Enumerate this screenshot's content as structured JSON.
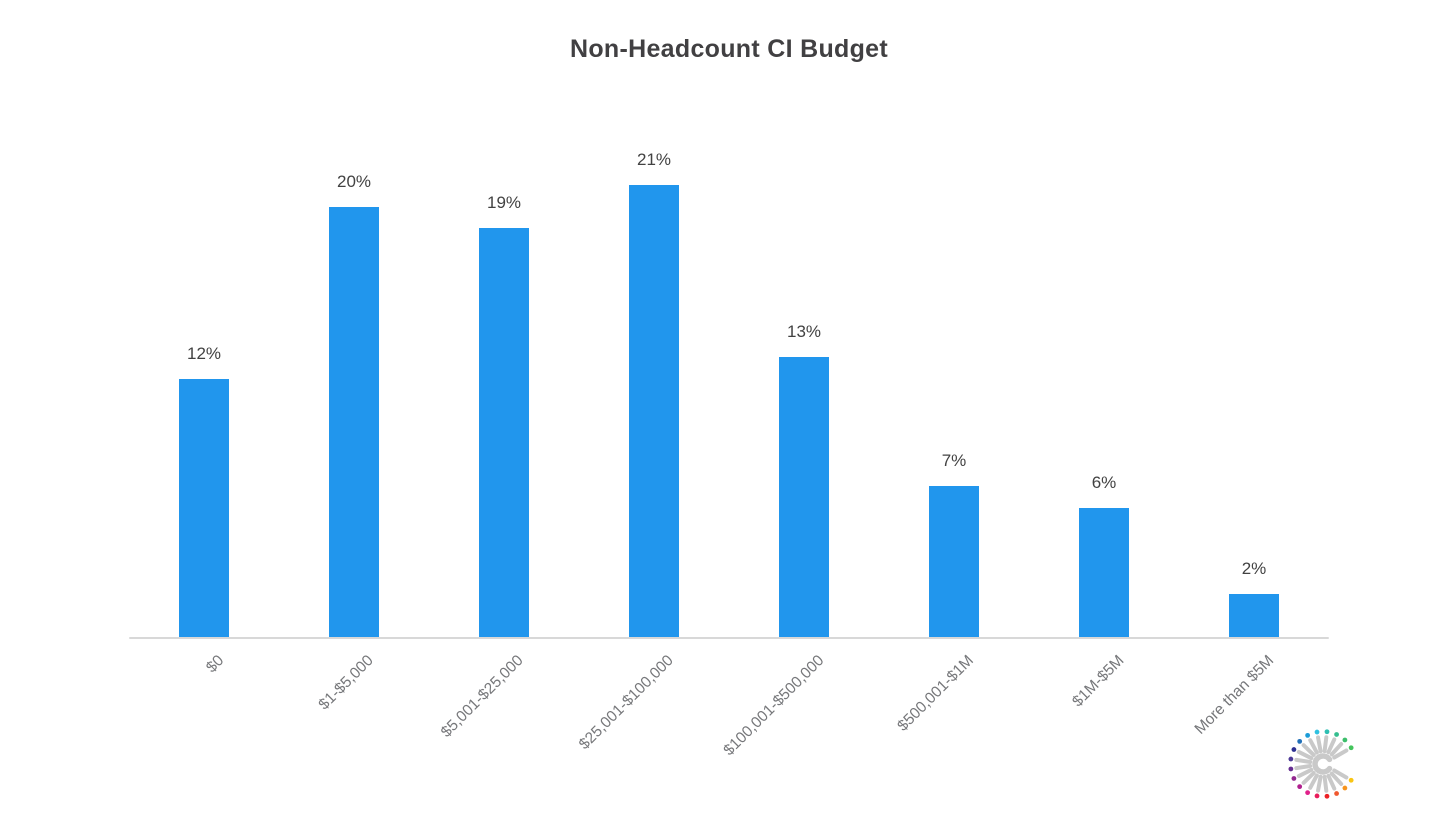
{
  "page": {
    "background": "#ffffff"
  },
  "chart_data": {
    "type": "bar",
    "title": "Non-Headcount CI Budget",
    "categories": [
      "$0",
      "$1-$5,000",
      "$5,001-$25,000",
      "$25,001-$100,000",
      "$100,001-$500,000",
      "$500,001-$1M",
      "$1M-$5M",
      "More than $5M"
    ],
    "values": [
      12,
      20,
      19,
      21,
      13,
      7,
      6,
      2
    ],
    "value_labels": [
      "12%",
      "20%",
      "19%",
      "21%",
      "13%",
      "7%",
      "6%",
      "2%"
    ],
    "unit": "percent",
    "xlabel": "",
    "ylabel": "",
    "ylim": [
      0,
      23
    ],
    "grid": false,
    "legend": false,
    "x_tick_rotation_deg": 45,
    "bar_color": "#2196ED",
    "title_color": "#414042",
    "value_label_color": "#424242",
    "tick_label_color": "#76777a",
    "axis_line_color": "#d8d8d8"
  },
  "logo": {
    "name": "starburst-c-logo",
    "ray_color": "#c9c9c9",
    "dot_colors": [
      "#F9C513",
      "#F7941D",
      "#F0582F",
      "#EC2227",
      "#E81D5B",
      "#E0218A",
      "#B0208E",
      "#93278F",
      "#662D91",
      "#4D3A97",
      "#2E3192",
      "#2170B8",
      "#1B9CD8",
      "#2FC1E0",
      "#2EBFB3",
      "#35BE8F",
      "#3CBE6B",
      "#44C45C"
    ]
  }
}
